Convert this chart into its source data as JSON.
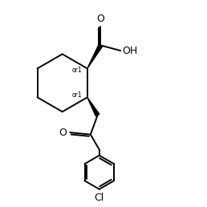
{
  "background_color": "#ffffff",
  "line_color": "#000000",
  "line_width": 1.4,
  "font_size": 8,
  "figsize": [
    2.58,
    2.58
  ],
  "dpi": 100,
  "xlim": [
    0,
    10
  ],
  "ylim": [
    0,
    10
  ]
}
